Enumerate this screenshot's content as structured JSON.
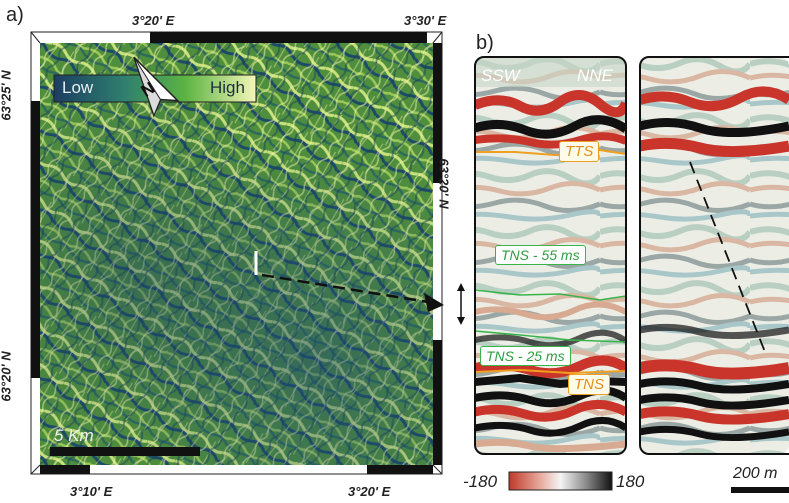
{
  "panel_a": {
    "label": "a)",
    "top_coords": [
      "3°20' E",
      "3°30' E"
    ],
    "bottom_coords": [
      "3°10' E",
      "3°20' E"
    ],
    "left_coords": [
      "63°25' N",
      "63°20' N"
    ],
    "right_coords": [
      "63°20' N"
    ],
    "legend": {
      "low": "Low",
      "high": "High",
      "north": "N"
    },
    "scalebar": "5 Km"
  },
  "panel_b": {
    "label": "b)",
    "directions": {
      "left": "SSW",
      "right": "NNE"
    },
    "horizons": [
      "TTS",
      "TNS - 55 ms",
      "TNS - 25 ms",
      "TNS"
    ],
    "colorbar": {
      "min": "-180",
      "max": "180"
    },
    "scalebar": "200 m"
  },
  "colors": {
    "map_green": "#5d9a3a",
    "map_blue": "#1f4f6e",
    "map_yellow": "#e9ee9a",
    "seis_red": "#c9352a",
    "seis_black": "#111111",
    "horizon_orange": "#f0a020",
    "horizon_green": "#38b54a"
  }
}
